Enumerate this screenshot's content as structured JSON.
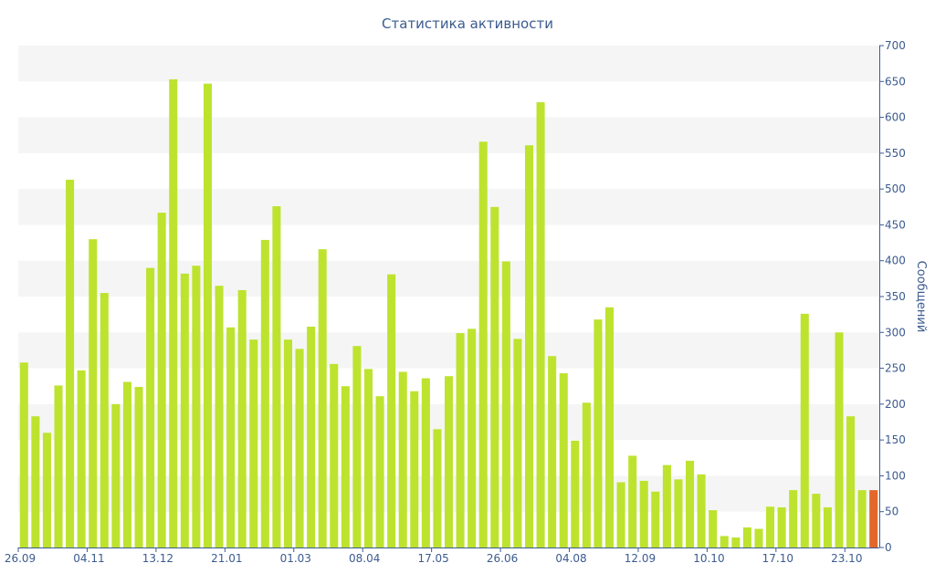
{
  "chart_data": {
    "type": "bar",
    "title": "Статистика активности",
    "xlabel": "",
    "ylabel": "Сообщений",
    "y_axis_side": "right",
    "ylim": [
      0,
      700
    ],
    "y_ticks": [
      0,
      50,
      100,
      150,
      200,
      250,
      300,
      350,
      400,
      450,
      500,
      550,
      600,
      650,
      700
    ],
    "x_tick_labels": [
      {
        "index": 0,
        "label": "26.09"
      },
      {
        "index": 6,
        "label": "04.11"
      },
      {
        "index": 12,
        "label": "13.12"
      },
      {
        "index": 18,
        "label": "21.01"
      },
      {
        "index": 24,
        "label": "01.03"
      },
      {
        "index": 30,
        "label": "08.04"
      },
      {
        "index": 36,
        "label": "17.05"
      },
      {
        "index": 42,
        "label": "26.06"
      },
      {
        "index": 48,
        "label": "04.08"
      },
      {
        "index": 54,
        "label": "12.09"
      },
      {
        "index": 60,
        "label": "10.10"
      },
      {
        "index": 66,
        "label": "17.10"
      },
      {
        "index": 72,
        "label": "23.10"
      }
    ],
    "values": [
      258,
      183,
      160,
      226,
      513,
      247,
      430,
      355,
      200,
      231,
      224,
      390,
      467,
      653,
      382,
      393,
      647,
      365,
      307,
      359,
      290,
      429,
      476,
      290,
      277,
      308,
      416,
      256,
      225,
      281,
      249,
      211,
      381,
      245,
      218,
      236,
      165,
      239,
      299,
      305,
      566,
      475,
      399,
      291,
      561,
      621,
      267,
      243,
      149,
      202,
      318,
      335,
      91,
      128,
      93,
      78,
      115,
      95,
      121,
      102,
      52,
      16,
      14,
      28,
      26,
      57,
      56,
      80,
      326,
      75,
      56,
      300,
      183,
      80,
      80
    ],
    "highlight_index": 74,
    "colors": {
      "bar": "#bde32f",
      "highlight": "#e2672a",
      "text": "#3b5b8f",
      "band": "#f5f5f5",
      "axis": "#3b5b8f"
    },
    "grid": "alternating-bands"
  }
}
